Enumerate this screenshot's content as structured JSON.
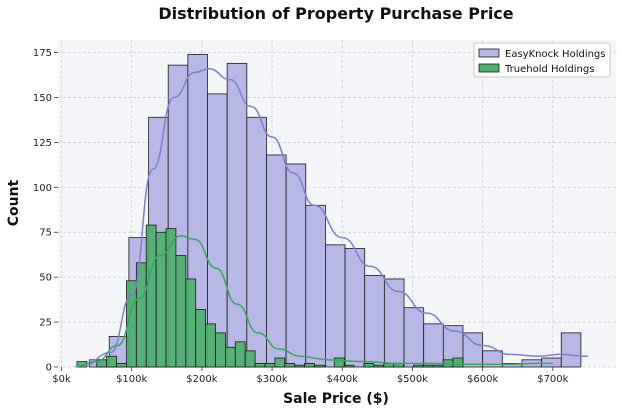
{
  "chart_data": {
    "type": "bar",
    "title": "Distribution of Property Purchase Price",
    "xlabel": "Sale Price ($)",
    "ylabel": "Count",
    "xlim": [
      -5000,
      790000
    ],
    "ylim": [
      0,
      182
    ],
    "x_ticks": [
      {
        "value": 0,
        "label": "$0k"
      },
      {
        "value": 100000,
        "label": "$100k"
      },
      {
        "value": 200000,
        "label": "$200k"
      },
      {
        "value": 300000,
        "label": "$300k"
      },
      {
        "value": 400000,
        "label": "$400k"
      },
      {
        "value": 500000,
        "label": "$500k"
      },
      {
        "value": 600000,
        "label": "$600k"
      },
      {
        "value": 700000,
        "label": "$700k"
      }
    ],
    "y_ticks": [
      0,
      25,
      50,
      75,
      100,
      125,
      150,
      175
    ],
    "grid": true,
    "legend_position": "top-right",
    "series": [
      {
        "name": "EasyKnock Holdings",
        "color": "#b8b8e6",
        "kde_color": "#7f7fcc",
        "bin_start": 40000,
        "bin_width": 28000,
        "values": [
          4,
          17,
          72,
          139,
          168,
          174,
          152,
          169,
          139,
          118,
          113,
          90,
          68,
          66,
          51,
          49,
          33,
          24,
          23,
          19,
          9,
          2,
          4,
          5,
          19
        ],
        "kde": [
          [
            30000,
            0.5
          ],
          [
            70000,
            8
          ],
          [
            100000,
            40
          ],
          [
            130000,
            110
          ],
          [
            160000,
            150
          ],
          [
            190000,
            164
          ],
          [
            210000,
            166
          ],
          [
            240000,
            160
          ],
          [
            270000,
            145
          ],
          [
            300000,
            128
          ],
          [
            330000,
            108
          ],
          [
            360000,
            90
          ],
          [
            400000,
            72
          ],
          [
            440000,
            56
          ],
          [
            480000,
            42
          ],
          [
            520000,
            30
          ],
          [
            560000,
            20
          ],
          [
            600000,
            12
          ],
          [
            640000,
            7
          ],
          [
            680000,
            6
          ],
          [
            710000,
            7
          ],
          [
            750000,
            6
          ]
        ]
      },
      {
        "name": "Truehold Holdings",
        "color": "#4daf6e",
        "kde_color": "#3aa65f",
        "bin_start": 22000,
        "bin_width": 14100,
        "values": [
          3,
          0,
          4,
          6,
          2,
          48,
          58,
          79,
          75,
          77,
          62,
          49,
          32,
          24,
          19,
          11,
          14,
          9,
          2,
          2,
          5,
          2,
          1,
          2,
          1,
          0,
          5,
          1,
          0,
          2,
          1,
          2,
          2,
          0,
          1,
          1,
          1,
          4,
          5
        ],
        "kde": [
          [
            20000,
            0.3
          ],
          [
            50000,
            3
          ],
          [
            80000,
            12
          ],
          [
            110000,
            38
          ],
          [
            140000,
            62
          ],
          [
            170000,
            73
          ],
          [
            190000,
            71
          ],
          [
            220000,
            55
          ],
          [
            250000,
            35
          ],
          [
            280000,
            19
          ],
          [
            310000,
            10
          ],
          [
            340000,
            6
          ],
          [
            380000,
            4
          ],
          [
            430000,
            3
          ],
          [
            480000,
            2
          ],
          [
            530000,
            2
          ],
          [
            580000,
            1.5
          ],
          [
            630000,
            1.5
          ],
          [
            680000,
            2
          ],
          [
            700000,
            2
          ]
        ]
      }
    ]
  }
}
